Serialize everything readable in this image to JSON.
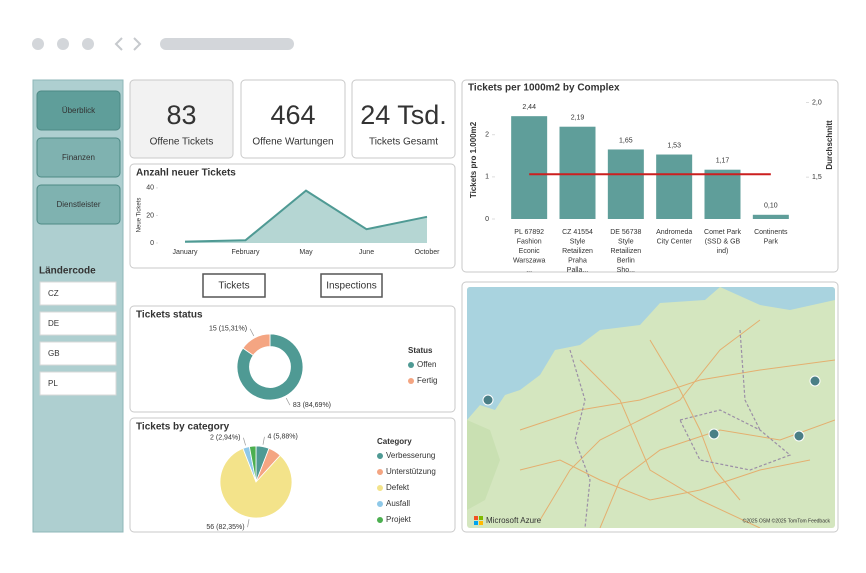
{
  "sidebar": {
    "nav": [
      "Überblick",
      "Finanzen",
      "Dienstleister"
    ],
    "filter_title": "Ländercode",
    "filter_options": [
      "CZ",
      "DE",
      "GB",
      "PL"
    ]
  },
  "kpis": [
    {
      "value": "83",
      "label": "Offene Tickets"
    },
    {
      "value": "464",
      "label": "Offene Wartungen"
    },
    {
      "value": "24 Tsd.",
      "label": "Tickets Gesamt"
    }
  ],
  "buttons": [
    "Tickets",
    "Inspections"
  ],
  "new_tickets": {
    "type": "area",
    "title": "Anzahl neuer Tickets",
    "y_label": "Neue Tickets",
    "categories": [
      "January",
      "February",
      "May",
      "June",
      "October"
    ],
    "values": [
      1,
      2,
      38,
      10,
      19
    ],
    "ylim": [
      0,
      45
    ],
    "yticks": [
      0,
      20,
      40
    ],
    "color": "#4f9a94",
    "fill": "#b5d6d3"
  },
  "tickets_per_area": {
    "type": "bar",
    "title": "Tickets per 1000m2 by Complex",
    "categories": [
      "PL 67892 Fashion Econic Warszawa ...",
      "CZ 41554 Style Retailizen Praha Palla...",
      "DE 56738 Style Retailizen Berlin Sho...",
      "Andromeda City Center",
      "Comet Park (SSD & GB ind)",
      "Continents Park"
    ],
    "series": [
      {
        "name": "Tickets pro 1.000m2",
        "color": "#5f9e9a",
        "values": [
          2.44,
          2.19,
          1.65,
          1.53,
          1.17,
          0.1
        ],
        "value_labels": [
          "2,44",
          "2,19",
          "1,65",
          "1,53",
          "1,17",
          "0,10"
        ]
      },
      {
        "name": "Durchschnitt",
        "axis": "y2",
        "color": "#cc1f1f",
        "values": [
          1.52,
          1.52,
          1.52,
          1.52,
          1.52,
          1.52
        ]
      }
    ],
    "ylim": [
      0,
      2.8
    ],
    "yticks": [
      0,
      1,
      2
    ],
    "y2lim": [
      1.22,
      2.01
    ],
    "y2ticks": [
      {
        "value": 1.5,
        "label": "1,5"
      },
      {
        "value": 2,
        "label": "2,0"
      }
    ]
  },
  "status": {
    "type": "donut",
    "title": "Tickets status",
    "legend_title": "Status",
    "categories": [
      "Offen",
      "Fertig"
    ],
    "values": [
      83,
      15
    ],
    "value_labels": [
      "83 (84,69%)",
      "15 (15,31%)"
    ],
    "colors": [
      "#4f9a94",
      "#f4a582"
    ]
  },
  "category": {
    "type": "pie",
    "title": "Tickets by category",
    "legend_title": "Category",
    "categories": [
      "Verbesserung",
      "Unterstützung",
      "Defekt",
      "Ausfall",
      "Projekt"
    ],
    "values": [
      4,
      4,
      56,
      2,
      2
    ],
    "value_labels": [
      "4 (5,88%)",
      null,
      "56 (82,35%)",
      "2 (2,94%)",
      null
    ],
    "colors": [
      "#4f9a94",
      "#f4a582",
      "#f3e38a",
      "#8ec8e8",
      "#4caf50"
    ]
  },
  "map": {
    "provider": "Microsoft Azure",
    "attribution": "©2025 OSM  ©2025 TomTom  Feedback"
  }
}
